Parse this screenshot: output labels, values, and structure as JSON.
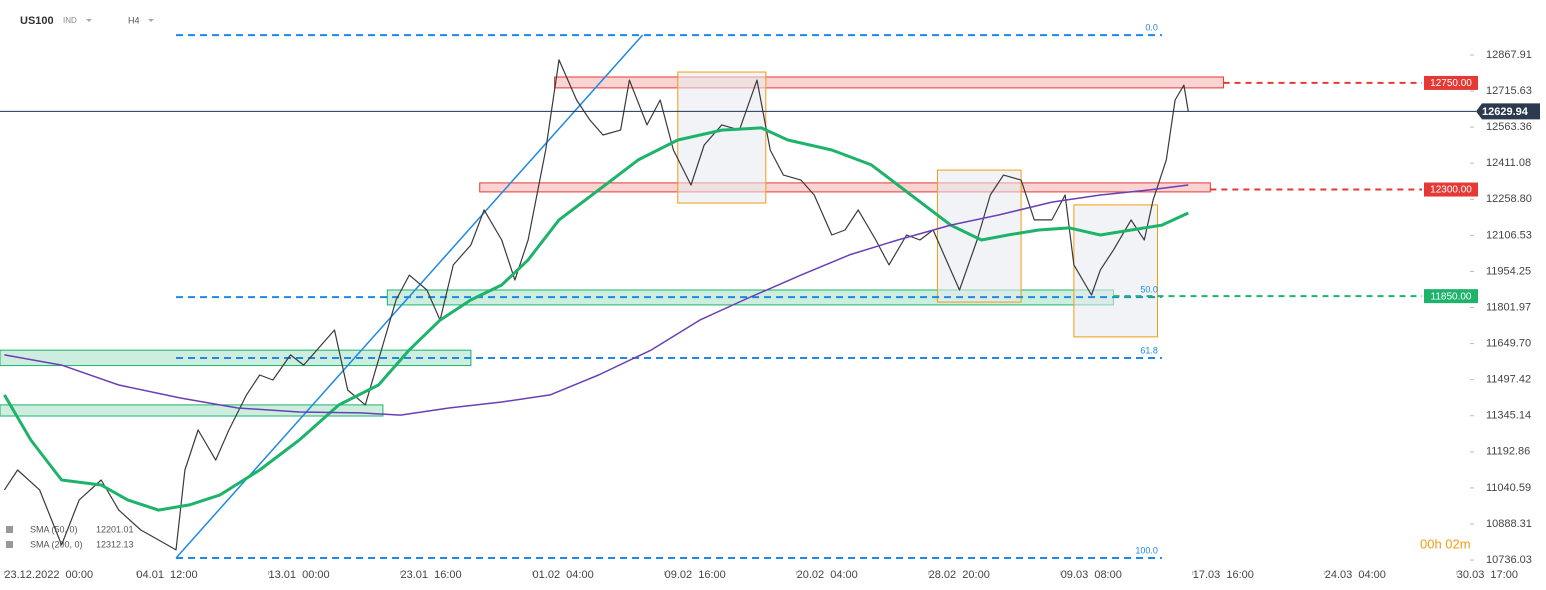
{
  "chart_data": {
    "type": "line",
    "title": "US100",
    "instrument_type": "IND",
    "timeframe": "H4",
    "xlim": [
      -1,
      333
    ],
    "ylim": [
      10673,
      13100
    ],
    "xticks": [
      {
        "value": 0,
        "label": "23.12.2022  00:00"
      },
      {
        "value": 30,
        "label": "04.01  12:00"
      },
      {
        "value": 60,
        "label": "13.01  00:00"
      },
      {
        "value": 90,
        "label": "23.01  16:00"
      },
      {
        "value": 120,
        "label": "01.02  04:00"
      },
      {
        "value": 150,
        "label": "09.02  16:00"
      },
      {
        "value": 180,
        "label": "20.02  04:00"
      },
      {
        "value": 210,
        "label": "28.02  20:00"
      },
      {
        "value": 240,
        "label": "09.03  08:00"
      },
      {
        "value": 270,
        "label": "17.03  16:00"
      },
      {
        "value": 300,
        "label": "24.03  04:00"
      },
      {
        "value": 330,
        "label": "30.03  17:00"
      }
    ],
    "yticks": [
      12867.91,
      12715.63,
      12563.36,
      12411.08,
      {
        "value": 12258.8,
        "label": "12258.80"
      },
      12106.53,
      11954.25,
      11801.97,
      {
        "value": 11649.7,
        "label": "11649.70"
      },
      11497.42,
      11345.14,
      11192.86,
      11040.59,
      10888.31,
      10736.03
    ],
    "series": [
      {
        "color": "#3a3a3a",
        "x": [
          0,
          3,
          8,
          13,
          17,
          22,
          26,
          31,
          35,
          39,
          41,
          44,
          48,
          51,
          55,
          58,
          61,
          65,
          68,
          72,
          75,
          78,
          82,
          85,
          89,
          92,
          96,
          99,
          102,
          106,
          109,
          113,
          116,
          119,
          123,
          126,
          130,
          133,
          136,
          140,
          142,
          146,
          149,
          152,
          156,
          159,
          163,
          167,
          171,
          174,
          177,
          181,
          184,
          188,
          191,
          194,
          198,
          201,
          205,
          208,
          211,
          215,
          217,
          221,
          224,
          227,
          231,
          234,
          238,
          241,
          243,
          247,
          249,
          252,
          256,
          259,
          261,
          264,
          266,
          268,
          269
        ],
        "values": [
          11032,
          11116,
          11032,
          10800,
          10990,
          11074,
          10947,
          10863,
          10821,
          10779,
          11116,
          11285,
          11158,
          11285,
          11433,
          11517,
          11496,
          11602,
          11559,
          11644,
          11707,
          11454,
          11391,
          11581,
          11834,
          11939,
          11876,
          11749,
          11982,
          12066,
          12214,
          12087,
          11918,
          12087,
          12467,
          12847,
          12678,
          12594,
          12530,
          12551,
          12762,
          12573,
          12678,
          12467,
          12319,
          12488,
          12573,
          12551,
          12762,
          12467,
          12361,
          12340,
          12277,
          12108,
          12129,
          12214,
          12087,
          11982,
          12108,
          12087,
          12129,
          11960,
          11876,
          12087,
          12277,
          12361,
          12340,
          12172,
          12172,
          12277,
          11982,
          11855,
          11960,
          12045,
          12172,
          12087,
          12256,
          12425,
          12678,
          12741,
          12630
        ]
      },
      {
        "name": "SMA (50, 0)",
        "legend_value": 12201.01,
        "color": "#1db36b",
        "x": [
          0,
          6,
          13,
          22,
          28,
          35,
          42,
          49,
          58,
          67,
          76,
          85,
          92,
          99,
          106,
          113,
          119,
          126,
          135,
          144,
          153,
          163,
          172,
          178,
          188,
          197,
          206,
          215,
          222,
          228,
          235,
          242,
          249,
          256,
          263,
          269
        ],
        "values": [
          11433,
          11243,
          11074,
          11053,
          10990,
          10947,
          10969,
          11011,
          11116,
          11243,
          11391,
          11475,
          11623,
          11749,
          11834,
          11897,
          12003,
          12172,
          12298,
          12425,
          12509,
          12551,
          12560,
          12509,
          12467,
          12404,
          12277,
          12150,
          12087,
          12108,
          12129,
          12138,
          12108,
          12129,
          12150,
          12201
        ]
      },
      {
        "name": "SMA (200, 0)",
        "legend_value": 12312.13,
        "color": "#6a3fb5",
        "x": [
          0,
          13,
          26,
          40,
          53,
          67,
          81,
          90,
          101,
          113,
          124,
          135,
          147,
          158,
          169,
          181,
          192,
          203,
          215,
          226,
          238,
          249,
          260,
          269
        ],
        "values": [
          11602,
          11559,
          11475,
          11420,
          11378,
          11361,
          11357,
          11348,
          11378,
          11403,
          11433,
          11517,
          11623,
          11749,
          11842,
          11939,
          12024,
          12087,
          12150,
          12193,
          12247,
          12277,
          12298,
          12319
        ]
      }
    ],
    "trendline": {
      "color": "#1e88e5",
      "x": [
        39,
        145
      ],
      "y": [
        10745,
        12952
      ]
    },
    "fib_x": [
      39,
      263
    ],
    "fib_levels": [
      {
        "price": 12952,
        "ratio": "0.0"
      },
      {
        "price": 11846,
        "ratio": "50.0"
      },
      {
        "price": 11589,
        "ratio": "61.8"
      },
      {
        "price": 10745,
        "ratio": "100.0"
      }
    ],
    "zones": [
      {
        "x": [
          125,
          277
        ],
        "y": [
          12729,
          12775
        ],
        "color": "#e53935"
      },
      {
        "x": [
          108,
          274
        ],
        "y": [
          12290,
          12328
        ],
        "color": "#e53935"
      },
      {
        "x": [
          87,
          252
        ],
        "y": [
          11813,
          11876
        ],
        "color": "#1db36b"
      },
      {
        "x": [
          -1,
          106
        ],
        "y": [
          11557,
          11622
        ],
        "color": "#1db36b"
      },
      {
        "x": [
          -1,
          86
        ],
        "y": [
          11344,
          11391
        ],
        "color": "#1db36b"
      },
      {
        "x": [
          153,
          173
        ],
        "y": [
          12243,
          12796
        ],
        "color": "#f39c12"
      },
      {
        "x": [
          212,
          231
        ],
        "y": [
          11825,
          12382
        ],
        "color": "#f39c12"
      },
      {
        "x": [
          243,
          262
        ],
        "y": [
          11678,
          12235
        ],
        "color": "#f39c12"
      }
    ],
    "levels": [
      {
        "value": 12750,
        "label": "12750.00",
        "x_start": 277,
        "color": "#e53935"
      },
      {
        "value": 12300,
        "label": "12300.00",
        "x_start": 274,
        "color": "#e53935"
      },
      {
        "value": 11850,
        "label": "11850.00",
        "x_start": 252,
        "color": "#1db36b"
      }
    ],
    "last_price": 12629.94,
    "timer": "00h 02m"
  }
}
